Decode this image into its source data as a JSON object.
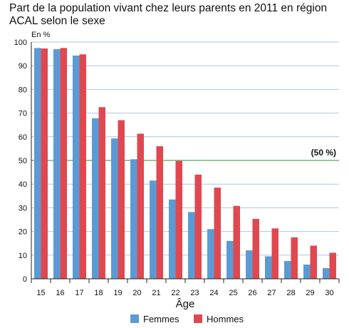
{
  "chart_data": {
    "type": "bar",
    "title": "Part de la population vivant chez leurs parents en 2011 en région ACAL selon le sexe",
    "ylabel": "En %",
    "xlabel": "Âge",
    "ylim": [
      0,
      100
    ],
    "yticks": [
      0,
      10,
      20,
      30,
      40,
      50,
      60,
      70,
      80,
      90,
      100
    ],
    "grid": true,
    "legend_position": "bottom",
    "categories": [
      "15",
      "16",
      "17",
      "18",
      "19",
      "20",
      "21",
      "22",
      "23",
      "24",
      "25",
      "26",
      "27",
      "28",
      "29",
      "30"
    ],
    "series": [
      {
        "name": "Femmes",
        "color": "#5b9bd5",
        "values": [
          97.5,
          97,
          94.3,
          67.8,
          59.3,
          50.5,
          41.5,
          33.5,
          28.2,
          21,
          16,
          12,
          9.5,
          7.5,
          6,
          4.5
        ]
      },
      {
        "name": "Hommes",
        "color": "#e04850",
        "values": [
          97.3,
          97.5,
          94.8,
          72.5,
          67,
          61.3,
          56,
          49.8,
          44,
          38.5,
          30.8,
          25.3,
          21.3,
          17.5,
          14,
          11
        ]
      }
    ],
    "reference_line": {
      "value": 50,
      "label": "(50 %)",
      "color": "#5aa85a"
    }
  }
}
